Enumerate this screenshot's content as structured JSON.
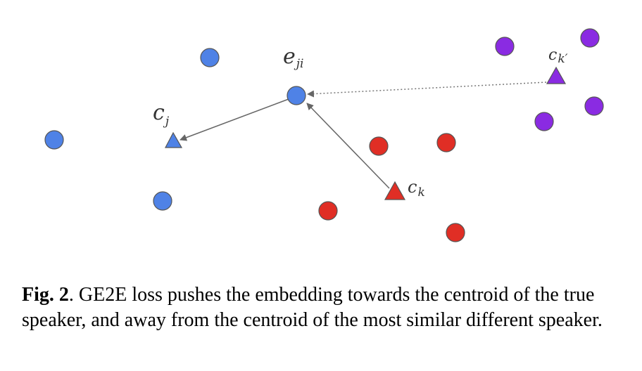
{
  "colors": {
    "blue": "#4F82E6",
    "red": "#E02E25",
    "purple": "#8A2BE2",
    "stroke": "#555555",
    "arrow": "#666666"
  },
  "labels": {
    "e_main": "e",
    "e_sub": "ji",
    "cj_main": "c",
    "cj_sub": "j",
    "ck_main": "c",
    "ck_sub": "k",
    "ckp_main": "c",
    "ckp_sub": "k′"
  },
  "caption": {
    "fig_label": "Fig. 2",
    "text": ". GE2E loss pushes the embedding towards the centroid of the true speaker, and away from the centroid of the most similar different speaker."
  }
}
